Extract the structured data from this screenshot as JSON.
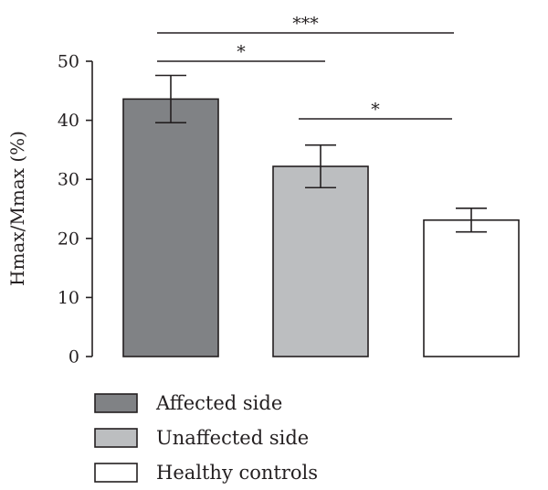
{
  "chart_data": {
    "type": "bar",
    "ylabel": "Hmax/Mmax (%)",
    "ylim": [
      0,
      50
    ],
    "yticks": [
      0,
      10,
      20,
      30,
      40,
      50
    ],
    "grid": false,
    "legend_position": "bottom-left",
    "categories": [
      "Affected side",
      "Unaffected side",
      "Healthy controls"
    ],
    "values": [
      43.6,
      32.2,
      23.1
    ],
    "error": [
      4.0,
      3.6,
      2.0
    ],
    "colors": [
      "#808285",
      "#bcbec0",
      "#ffffff"
    ],
    "significance": [
      {
        "from": 0,
        "to": 2,
        "label": "***"
      },
      {
        "from": 0,
        "to": 1,
        "label": "*"
      },
      {
        "from": 1,
        "to": 2,
        "label": "*"
      }
    ]
  }
}
